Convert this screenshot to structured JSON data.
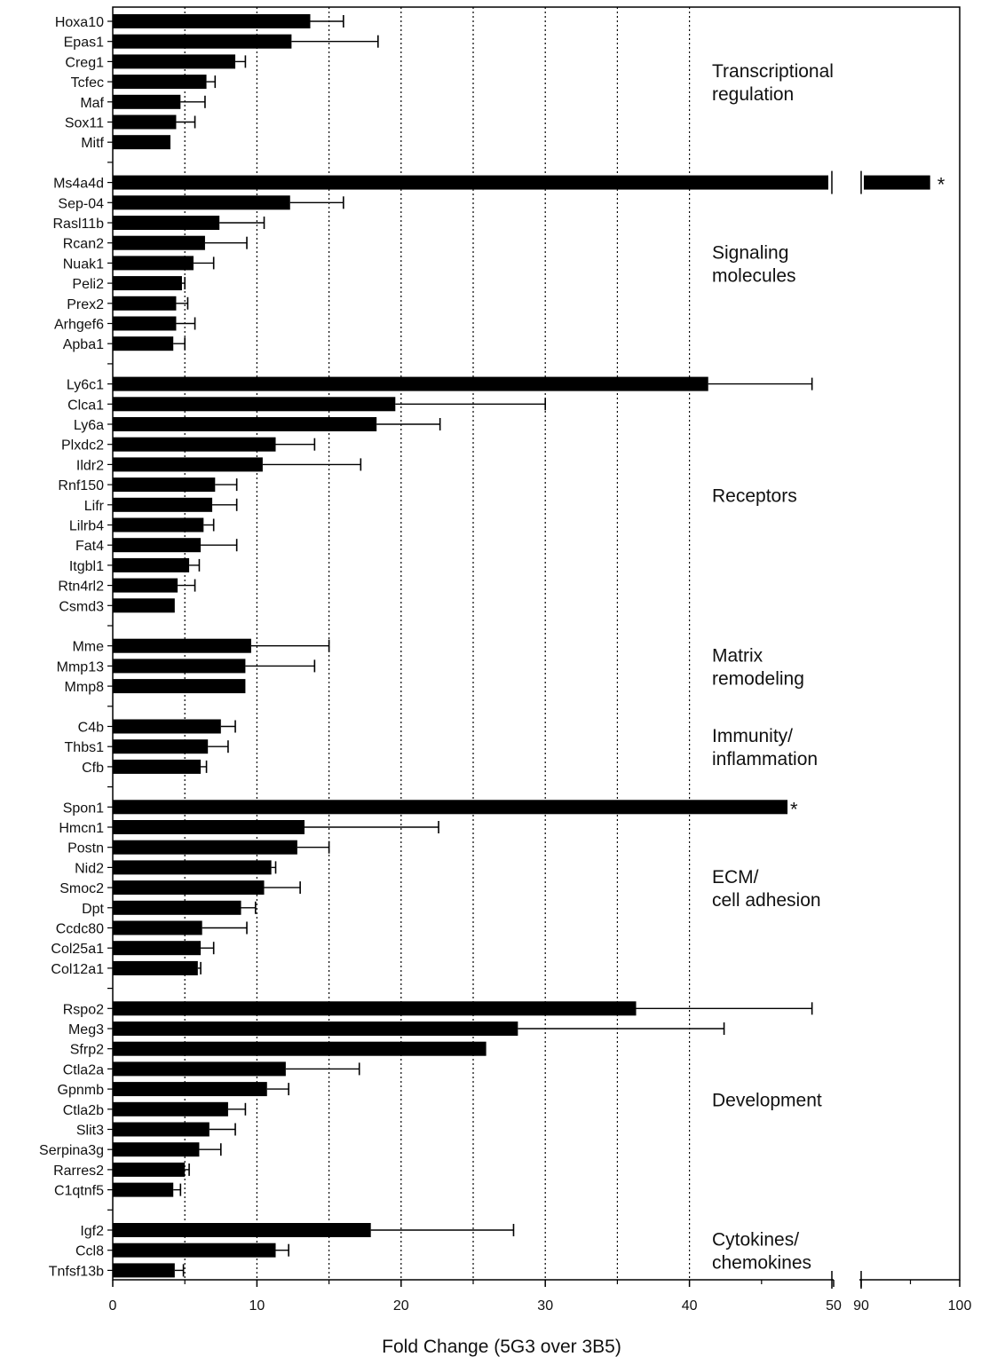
{
  "chart_data": {
    "type": "bar",
    "orientation": "horizontal",
    "xlabel": "Fold Change (5G3 over 3B5)",
    "axis_break": {
      "from": 50,
      "to": 90
    },
    "x_ticks_main": [
      0,
      10,
      20,
      30,
      40,
      50
    ],
    "x_ticks_break": [
      90,
      100
    ],
    "xlim": [
      0,
      100
    ],
    "gridlines": [
      5,
      10,
      15,
      20,
      25,
      30,
      35,
      40
    ],
    "asterisk_marker": "*",
    "groups": [
      {
        "label": "Transcriptional\nregulation",
        "items": [
          {
            "name": "Hoxa10",
            "value": 13.7,
            "err": 2.3
          },
          {
            "name": "Epas1",
            "value": 12.4,
            "err": 6.0
          },
          {
            "name": "Creg1",
            "value": 8.5,
            "err": 0.7
          },
          {
            "name": "Tcfec",
            "value": 6.5,
            "err": 0.6
          },
          {
            "name": "Maf",
            "value": 4.7,
            "err": 1.7
          },
          {
            "name": "Sox11",
            "value": 4.4,
            "err": 1.3
          },
          {
            "name": "Mitf",
            "value": 4.0,
            "err": 0
          }
        ]
      },
      {
        "label": "Signaling\nmolecules",
        "items": [
          {
            "name": "Ms4a4d",
            "value": 97,
            "err": 0,
            "asterisk": true,
            "broken": true
          },
          {
            "name": "Sep-04",
            "value": 12.3,
            "err": 3.7
          },
          {
            "name": "Rasl11b",
            "value": 7.4,
            "err": 3.1
          },
          {
            "name": "Rcan2",
            "value": 6.4,
            "err": 2.9
          },
          {
            "name": "Nuak1",
            "value": 5.6,
            "err": 1.4
          },
          {
            "name": "Peli2",
            "value": 4.8,
            "err": 0.2
          },
          {
            "name": "Prex2",
            "value": 4.4,
            "err": 0.8
          },
          {
            "name": "Arhgef6",
            "value": 4.4,
            "err": 1.3
          },
          {
            "name": "Apba1",
            "value": 4.2,
            "err": 0.8
          }
        ]
      },
      {
        "label": "Receptors",
        "items": [
          {
            "name": "Ly6c1",
            "value": 41.3,
            "err": 7.2
          },
          {
            "name": "Clca1",
            "value": 19.6,
            "err": 10.4
          },
          {
            "name": "Ly6a",
            "value": 18.3,
            "err": 4.4
          },
          {
            "name": "Plxdc2",
            "value": 11.3,
            "err": 2.7
          },
          {
            "name": "Ildr2",
            "value": 10.4,
            "err": 6.8
          },
          {
            "name": "Rnf150",
            "value": 7.1,
            "err": 1.5
          },
          {
            "name": "Lifr",
            "value": 6.9,
            "err": 1.7
          },
          {
            "name": "Lilrb4",
            "value": 6.3,
            "err": 0.7
          },
          {
            "name": "Fat4",
            "value": 6.1,
            "err": 2.5
          },
          {
            "name": "Itgbl1",
            "value": 5.3,
            "err": 0.7
          },
          {
            "name": "Rtn4rl2",
            "value": 4.5,
            "err": 1.2
          },
          {
            "name": "Csmd3",
            "value": 4.3,
            "err": 0
          }
        ]
      },
      {
        "label": "Matrix\nremodeling",
        "items": [
          {
            "name": "Mme",
            "value": 9.6,
            "err": 5.4
          },
          {
            "name": "Mmp13",
            "value": 9.2,
            "err": 4.8
          },
          {
            "name": "Mmp8",
            "value": 9.2,
            "err": 0
          }
        ]
      },
      {
        "label": "Immunity/\ninflammation",
        "items": [
          {
            "name": "C4b",
            "value": 7.5,
            "err": 1.0
          },
          {
            "name": "Thbs1",
            "value": 6.6,
            "err": 1.4
          },
          {
            "name": "Cfb",
            "value": 6.1,
            "err": 0.4
          }
        ]
      },
      {
        "label": "ECM/\ncell adhesion",
        "items": [
          {
            "name": "Spon1",
            "value": 46.8,
            "err": 0,
            "asterisk": true
          },
          {
            "name": "Hmcn1",
            "value": 13.3,
            "err": 9.3
          },
          {
            "name": "Postn",
            "value": 12.8,
            "err": 2.2
          },
          {
            "name": "Nid2",
            "value": 11.0,
            "err": 0.3
          },
          {
            "name": "Smoc2",
            "value": 10.5,
            "err": 2.5
          },
          {
            "name": "Dpt",
            "value": 8.9,
            "err": 1.0
          },
          {
            "name": "Ccdc80",
            "value": 6.2,
            "err": 3.1
          },
          {
            "name": "Col25a1",
            "value": 6.1,
            "err": 0.9
          },
          {
            "name": "Col12a1",
            "value": 5.9,
            "err": 0.2
          }
        ]
      },
      {
        "label": "Development",
        "items": [
          {
            "name": "Rspo2",
            "value": 36.3,
            "err": 12.2
          },
          {
            "name": "Meg3",
            "value": 28.1,
            "err": 14.3
          },
          {
            "name": "Sfrp2",
            "value": 25.9,
            "err": 0
          },
          {
            "name": "Ctla2a",
            "value": 12.0,
            "err": 5.1
          },
          {
            "name": "Gpnmb",
            "value": 10.7,
            "err": 1.5
          },
          {
            "name": "Ctla2b",
            "value": 8.0,
            "err": 1.2
          },
          {
            "name": "Slit3",
            "value": 6.7,
            "err": 1.8
          },
          {
            "name": "Serpina3g",
            "value": 6.0,
            "err": 1.5
          },
          {
            "name": "Rarres2",
            "value": 5.0,
            "err": 0.3
          },
          {
            "name": "C1qtnf5",
            "value": 4.2,
            "err": 0.5
          }
        ]
      },
      {
        "label": "Cytokines/\nchemokines",
        "items": [
          {
            "name": "Igf2",
            "value": 17.9,
            "err": 9.9
          },
          {
            "name": "Ccl8",
            "value": 11.3,
            "err": 0.9
          },
          {
            "name": "Tnfsf13b",
            "value": 4.3,
            "err": 0.6
          }
        ]
      }
    ]
  }
}
